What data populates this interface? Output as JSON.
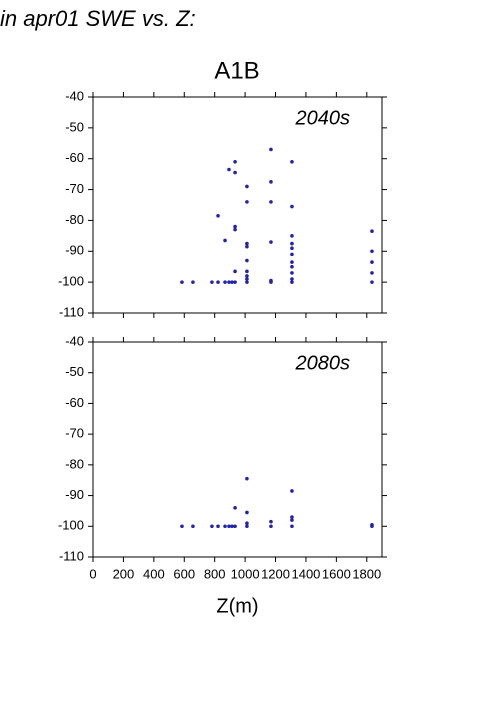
{
  "header": {
    "title": "in apr01 SWE vs. Z:",
    "subtitle": "A1B"
  },
  "chart_data": [
    {
      "type": "scatter",
      "annotation": "2040s",
      "color": "#2222aa",
      "x": [
        585,
        657,
        782,
        822,
        868,
        894,
        914,
        934,
        934,
        822,
        868,
        894,
        934,
        934,
        934,
        934,
        1012,
        1012,
        1012,
        1012,
        1012,
        1012,
        1012,
        1012,
        1012,
        1170,
        1170,
        1170,
        1170,
        1170,
        1170,
        1308,
        1308,
        1308,
        1308,
        1308,
        1308,
        1308,
        1308,
        1308,
        1308,
        1308,
        1834,
        1834,
        1834,
        1834,
        1834
      ],
      "values": [
        -100,
        -100,
        -100,
        -100,
        -100,
        -100,
        -100,
        -100,
        -96.5,
        -78.5,
        -86.5,
        -63.5,
        -61,
        -64.5,
        -82,
        -83,
        -69,
        -74,
        -87.5,
        -88.5,
        -93,
        -96.5,
        -98,
        -99,
        -100,
        -57,
        -67.5,
        -74,
        -87,
        -99.5,
        -100,
        -61,
        -75.5,
        -85,
        -87.5,
        -89,
        -91,
        -93.5,
        -95,
        -97,
        -99,
        -100,
        -83.5,
        -90,
        -93.5,
        -97,
        -100
      ],
      "xlim": [
        0,
        1900
      ],
      "ylim": [
        -110,
        -40
      ],
      "yticks": [
        -110,
        -100,
        -90,
        -80,
        -70,
        -60,
        -50,
        -40
      ]
    },
    {
      "type": "scatter",
      "annotation": "2080s",
      "color": "#2222aa",
      "x_label": "Z(m)",
      "x": [
        585,
        657,
        782,
        822,
        868,
        894,
        914,
        934,
        934,
        1012,
        1012,
        1012,
        1012,
        1170,
        1170,
        1308,
        1308,
        1308,
        1308,
        1834,
        1834
      ],
      "values": [
        -100,
        -100,
        -100,
        -100,
        -100,
        -100,
        -100,
        -100,
        -94,
        -84.5,
        -95.5,
        -99,
        -100,
        -98.5,
        -100,
        -88.5,
        -97,
        -98,
        -100,
        -99.5,
        -100
      ],
      "xlim": [
        0,
        1900
      ],
      "ylim": [
        -110,
        -40
      ],
      "yticks": [
        -110,
        -100,
        -90,
        -80,
        -70,
        -60,
        -50,
        -40
      ],
      "xticks": [
        0,
        200,
        400,
        600,
        800,
        1000,
        1200,
        1400,
        1600,
        1800
      ]
    }
  ]
}
